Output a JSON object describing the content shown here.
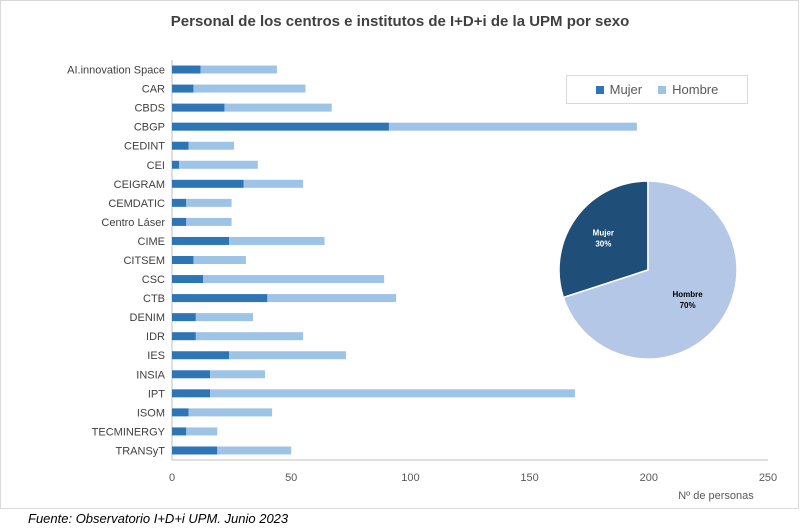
{
  "chart_data": [
    {
      "type": "bar",
      "orientation": "horizontal",
      "stacked": true,
      "title": "Personal de los centros e institutos de I+D+i de la UPM por sexo",
      "xlabel": "Nº de personas",
      "xlim": [
        0,
        250
      ],
      "xticks": [
        "0",
        "50",
        "100",
        "150",
        "200",
        "250"
      ],
      "legend_position": "top-right",
      "categories": [
        "AI.innovation Space",
        "CAR",
        "CBDS",
        "CBGP",
        "CEDINT",
        "CEI",
        "CEIGRAM",
        "CEMDATIC",
        "Centro Láser",
        "CIME",
        "CITSEM",
        "CSC",
        "CTB",
        "DENIM",
        "IDR",
        "IES",
        "INSIA",
        "IPT",
        "ISOM",
        "TECMINERGY",
        "TRANSyT"
      ],
      "series": [
        {
          "name": "Mujer",
          "color": "#2E75B6",
          "values": [
            12,
            9,
            22,
            91,
            7,
            3,
            30,
            6,
            6,
            24,
            9,
            13,
            40,
            10,
            10,
            24,
            16,
            16,
            7,
            6,
            19
          ]
        },
        {
          "name": "Hombre",
          "color": "#9DC3E6",
          "values": [
            32,
            47,
            45,
            104,
            19,
            33,
            25,
            19,
            19,
            40,
            22,
            76,
            54,
            24,
            45,
            49,
            23,
            153,
            35,
            13,
            31
          ]
        }
      ]
    },
    {
      "type": "pie",
      "slices": [
        {
          "label": "Mujer",
          "percent": 30,
          "text": "30%",
          "color": "#1F4E79"
        },
        {
          "label": "Hombre",
          "percent": 70,
          "text": "70%",
          "color": "#B4C7E7"
        }
      ]
    }
  ],
  "source": "Fuente: Observatorio I+D+i UPM. Junio 2023"
}
